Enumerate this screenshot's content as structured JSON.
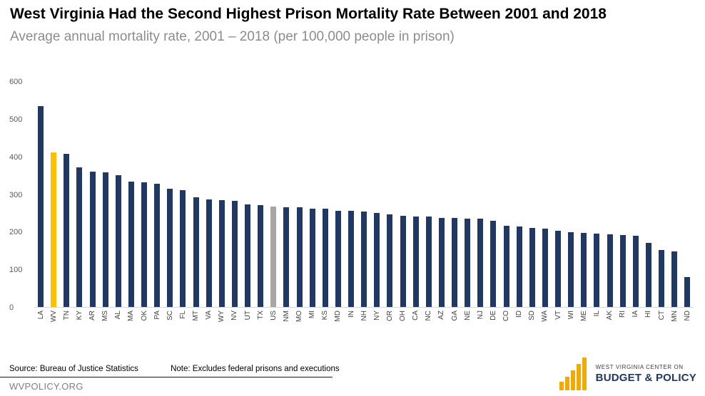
{
  "header": {
    "title": "West Virginia Had the Second Highest Prison Mortality Rate Between 2001 and 2018",
    "subtitle": "Average annual mortality rate, 2001 – 2018 (per 100,000 people in prison)"
  },
  "footer": {
    "source": "Source: Bureau of Justice Statistics",
    "note": "Note: Excludes federal prisons and executions",
    "url": "WVPOLICY.ORG"
  },
  "logo": {
    "line1": "WEST VIRGINIA CENTER ON",
    "line2": "BUDGET & POLICY",
    "icon": "bar-chart-icon"
  },
  "colors": {
    "bar": "#1F3864",
    "highlight": "#FFC000",
    "neutral": "#A6A6A6",
    "axis_text": "#595959",
    "logo_gold": "#F2A900",
    "logo_navy": "#1F3864"
  },
  "chart_data": {
    "type": "bar",
    "title": "West Virginia Had the Second Highest Prison Mortality Rate Between 2001 and 2018",
    "subtitle": "Average annual mortality rate, 2001 – 2018 (per 100,000 people in prison)",
    "xlabel": "",
    "ylabel": "",
    "ylim": [
      0,
      600
    ],
    "yticks": [
      0,
      100,
      200,
      300,
      400,
      500,
      600
    ],
    "grid": false,
    "legend": "none",
    "highlight_category": "WV",
    "neutral_category": "US",
    "categories": [
      "LA",
      "WV",
      "TN",
      "KY",
      "AR",
      "MS",
      "AL",
      "MA",
      "OK",
      "PA",
      "SC",
      "FL",
      "MT",
      "VA",
      "WY",
      "NV",
      "UT",
      "TX",
      "US",
      "NM",
      "MO",
      "MI",
      "KS",
      "MD",
      "IN",
      "NH",
      "NY",
      "OR",
      "OH",
      "CA",
      "NC",
      "AZ",
      "GA",
      "NE",
      "NJ",
      "DE",
      "CO",
      "ID",
      "SD",
      "WA",
      "VT",
      "WI",
      "ME",
      "IL",
      "AK",
      "RI",
      "IA",
      "HI",
      "CT",
      "MN",
      "ND"
    ],
    "values": [
      535,
      412,
      408,
      373,
      361,
      358,
      352,
      335,
      333,
      329,
      316,
      312,
      293,
      286,
      284,
      282,
      273,
      271,
      267,
      265,
      265,
      263,
      263,
      257,
      256,
      255,
      250,
      246,
      244,
      242,
      242,
      238,
      237,
      236,
      235,
      229,
      216,
      214,
      210,
      208,
      204,
      199,
      197,
      195,
      193,
      191,
      189,
      170,
      151,
      148,
      80
    ]
  }
}
